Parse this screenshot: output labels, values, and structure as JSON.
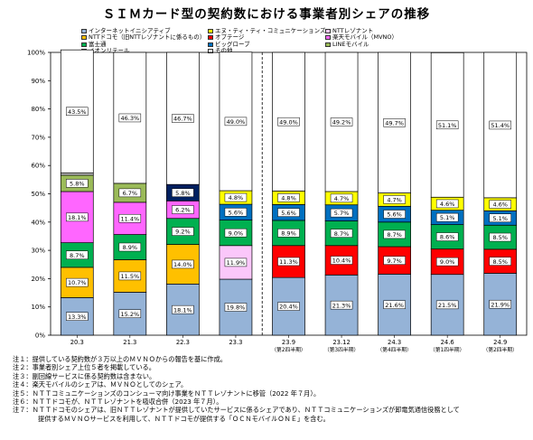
{
  "title": "ＳＩＭカード型の契約数における事業者別シェアの推移",
  "colors": {
    "internet_initiative": "#95b3d7",
    "ntt_docomo": "#ffc000",
    "fujitsu": "#00b050",
    "aeon": "#cccccc",
    "ntt_communications": "#ffff00",
    "optage": "#ff0000",
    "biglobe": "#0070c0",
    "other": "#ffffff",
    "ntt_resonant": "#fbc7fa",
    "rakuten": "#ff66ff",
    "line_mobile": "#9bbb59",
    "ntt_docomo_alt": "#002060"
  },
  "legend": [
    {
      "key": "internet_initiative",
      "label": "インターネットイニシアティブ"
    },
    {
      "key": "ntt_communications",
      "label": "エヌ・ティ・ティ・コミュニケーションズ"
    },
    {
      "key": "ntt_resonant",
      "label": "NTTレゾナント"
    },
    {
      "key": "ntt_docomo",
      "label": "NTTドコモ（旧NTTレゾナントに係るもの）"
    },
    {
      "key": "optage",
      "label": "オプテージ"
    },
    {
      "key": "rakuten",
      "label": "楽天モバイル（MVNO）"
    },
    {
      "key": "fujitsu",
      "label": "富士通"
    },
    {
      "key": "biglobe",
      "label": "ビッグローブ"
    },
    {
      "key": "line_mobile",
      "label": "LINEモバイル"
    },
    {
      "key": "aeon",
      "label": "イオンリテール"
    },
    {
      "key": "other",
      "label": "その他"
    }
  ],
  "chart_data": {
    "type": "bar",
    "stacked": true,
    "categories": [
      {
        "line1": "20.3",
        "line2": ""
      },
      {
        "line1": "21.3",
        "line2": ""
      },
      {
        "line1": "22.3",
        "line2": ""
      },
      {
        "line1": "23.3",
        "line2": ""
      },
      {
        "line1": "23.9",
        "line2": "（第2四半期）"
      },
      {
        "line1": "23.12",
        "line2": "（第3四半期）"
      },
      {
        "line1": "24.3",
        "line2": "（第4四半期）"
      },
      {
        "line1": "24.6",
        "line2": "（第1四半期）"
      },
      {
        "line1": "24.9",
        "line2": "（第2四半期）"
      }
    ],
    "ylim": [
      0,
      100
    ],
    "y_ticks": [
      "0%",
      "10%",
      "20%",
      "30%",
      "40%",
      "50%",
      "60%",
      "70%",
      "80%",
      "90%",
      "100%"
    ],
    "y_tick_values": [
      0,
      10,
      20,
      30,
      40,
      50,
      60,
      70,
      80,
      90,
      100
    ],
    "grid": false,
    "divider_after_category_index": 3,
    "stacks": [
      [
        {
          "key": "internet_initiative",
          "value": 13.3,
          "label": "13.3%"
        },
        {
          "key": "ntt_docomo",
          "value": 10.7,
          "label": "10.7%"
        },
        {
          "key": "fujitsu",
          "value": 8.7,
          "label": "8.7%"
        },
        {
          "key": "rakuten",
          "value": 18.1,
          "label": "18.1%"
        },
        {
          "key": "line_mobile",
          "value": 5.8,
          "label": "5.8%"
        },
        {
          "key": "aeon",
          "value": 0.8,
          "label": ""
        },
        {
          "key": "other",
          "value": 43.5,
          "label": "43.5%"
        }
      ],
      [
        {
          "key": "internet_initiative",
          "value": 15.2,
          "label": "15.2%"
        },
        {
          "key": "ntt_docomo",
          "value": 11.5,
          "label": "11.5%"
        },
        {
          "key": "fujitsu",
          "value": 8.9,
          "label": "8.9%"
        },
        {
          "key": "rakuten",
          "value": 11.4,
          "label": "11.4%"
        },
        {
          "key": "line_mobile",
          "value": 6.7,
          "label": "6.7%"
        },
        {
          "key": "other",
          "value": 46.3,
          "label": "46.3%"
        }
      ],
      [
        {
          "key": "internet_initiative",
          "value": 18.1,
          "label": "18.1%"
        },
        {
          "key": "ntt_docomo",
          "value": 14.0,
          "label": "14.0%"
        },
        {
          "key": "fujitsu",
          "value": 9.2,
          "label": "9.2%"
        },
        {
          "key": "rakuten",
          "value": 6.2,
          "label": "6.2%"
        },
        {
          "key": "ntt_docomo_alt",
          "value": 5.8,
          "label": "5.8%"
        },
        {
          "key": "other",
          "value": 46.7,
          "label": "46.7%"
        }
      ],
      [
        {
          "key": "internet_initiative",
          "value": 19.8,
          "label": "19.8%"
        },
        {
          "key": "ntt_resonant",
          "value": 11.9,
          "label": "11.9%"
        },
        {
          "key": "fujitsu",
          "value": 9.0,
          "label": "9.0%"
        },
        {
          "key": "biglobe",
          "value": 5.6,
          "label": "5.6%"
        },
        {
          "key": "ntt_communications",
          "value": 4.8,
          "label": "4.8%"
        },
        {
          "key": "other",
          "value": 49.0,
          "label": "49.0%"
        }
      ],
      [
        {
          "key": "internet_initiative",
          "value": 20.4,
          "label": "20.4%"
        },
        {
          "key": "optage",
          "value": 11.3,
          "label": "11.3%"
        },
        {
          "key": "fujitsu",
          "value": 8.9,
          "label": "8.9%"
        },
        {
          "key": "biglobe",
          "value": 5.6,
          "label": "5.6%"
        },
        {
          "key": "ntt_communications",
          "value": 4.8,
          "label": "4.8%"
        },
        {
          "key": "other",
          "value": 49.0,
          "label": "49.0%"
        }
      ],
      [
        {
          "key": "internet_initiative",
          "value": 21.3,
          "label": "21.3%"
        },
        {
          "key": "optage",
          "value": 10.4,
          "label": "10.4%"
        },
        {
          "key": "fujitsu",
          "value": 8.7,
          "label": "8.7%"
        },
        {
          "key": "biglobe",
          "value": 5.7,
          "label": "5.7%"
        },
        {
          "key": "ntt_communications",
          "value": 4.7,
          "label": "4.7%"
        },
        {
          "key": "other",
          "value": 49.2,
          "label": "49.2%"
        }
      ],
      [
        {
          "key": "internet_initiative",
          "value": 21.6,
          "label": "21.6%"
        },
        {
          "key": "optage",
          "value": 9.7,
          "label": "9.7%"
        },
        {
          "key": "fujitsu",
          "value": 8.7,
          "label": "8.7%"
        },
        {
          "key": "biglobe",
          "value": 5.6,
          "label": "5.6%"
        },
        {
          "key": "ntt_communications",
          "value": 4.7,
          "label": "4.7%"
        },
        {
          "key": "other",
          "value": 49.7,
          "label": "49.7%"
        }
      ],
      [
        {
          "key": "internet_initiative",
          "value": 21.5,
          "label": "21.5%"
        },
        {
          "key": "optage",
          "value": 9.0,
          "label": "9.0%"
        },
        {
          "key": "fujitsu",
          "value": 8.6,
          "label": "8.6%"
        },
        {
          "key": "biglobe",
          "value": 5.1,
          "label": "5.1%"
        },
        {
          "key": "ntt_communications",
          "value": 4.6,
          "label": "4.6%"
        },
        {
          "key": "other",
          "value": 51.1,
          "label": "51.1%"
        }
      ],
      [
        {
          "key": "internet_initiative",
          "value": 21.9,
          "label": "21.9%"
        },
        {
          "key": "optage",
          "value": 8.5,
          "label": "8.5%"
        },
        {
          "key": "fujitsu",
          "value": 8.5,
          "label": "8.5%"
        },
        {
          "key": "biglobe",
          "value": 5.1,
          "label": "5.1%"
        },
        {
          "key": "ntt_communications",
          "value": 4.6,
          "label": "4.6%"
        },
        {
          "key": "other",
          "value": 51.4,
          "label": "51.4%"
        }
      ]
    ]
  },
  "notes": [
    "注１：提供している契約数が３万以上のＭＶＮＯからの報告を基に作成。",
    "注２：事業者別シェア上位５者を掲載している。",
    "注３：副回線サービスに係る契約数は含まない。",
    "注４：楽天モバイルのシェアは、ＭＶＮＯとしてのシェア。",
    "注５：ＮＴＴコミュニケーションズのコンシューマ向け事業をＮＴＴレゾナントに移管（2022 年７月）。",
    "注６：ＮＴＴドコモが、ＮＴＴレゾナントを吸収合併（2023 年７月）。",
    "注７：ＮＴＴドコモのシェアは、旧ＮＴＴレゾナントが提供していたサービスに係るシェアであり、ＮＴＴコミュニケーションズが卸電気通信役務として",
    "提供するＭＶＮＯサービスを利用して、ＮＴＴドコモが提供する「ＯＣＮモバイルＯＮＥ」を含む。"
  ]
}
